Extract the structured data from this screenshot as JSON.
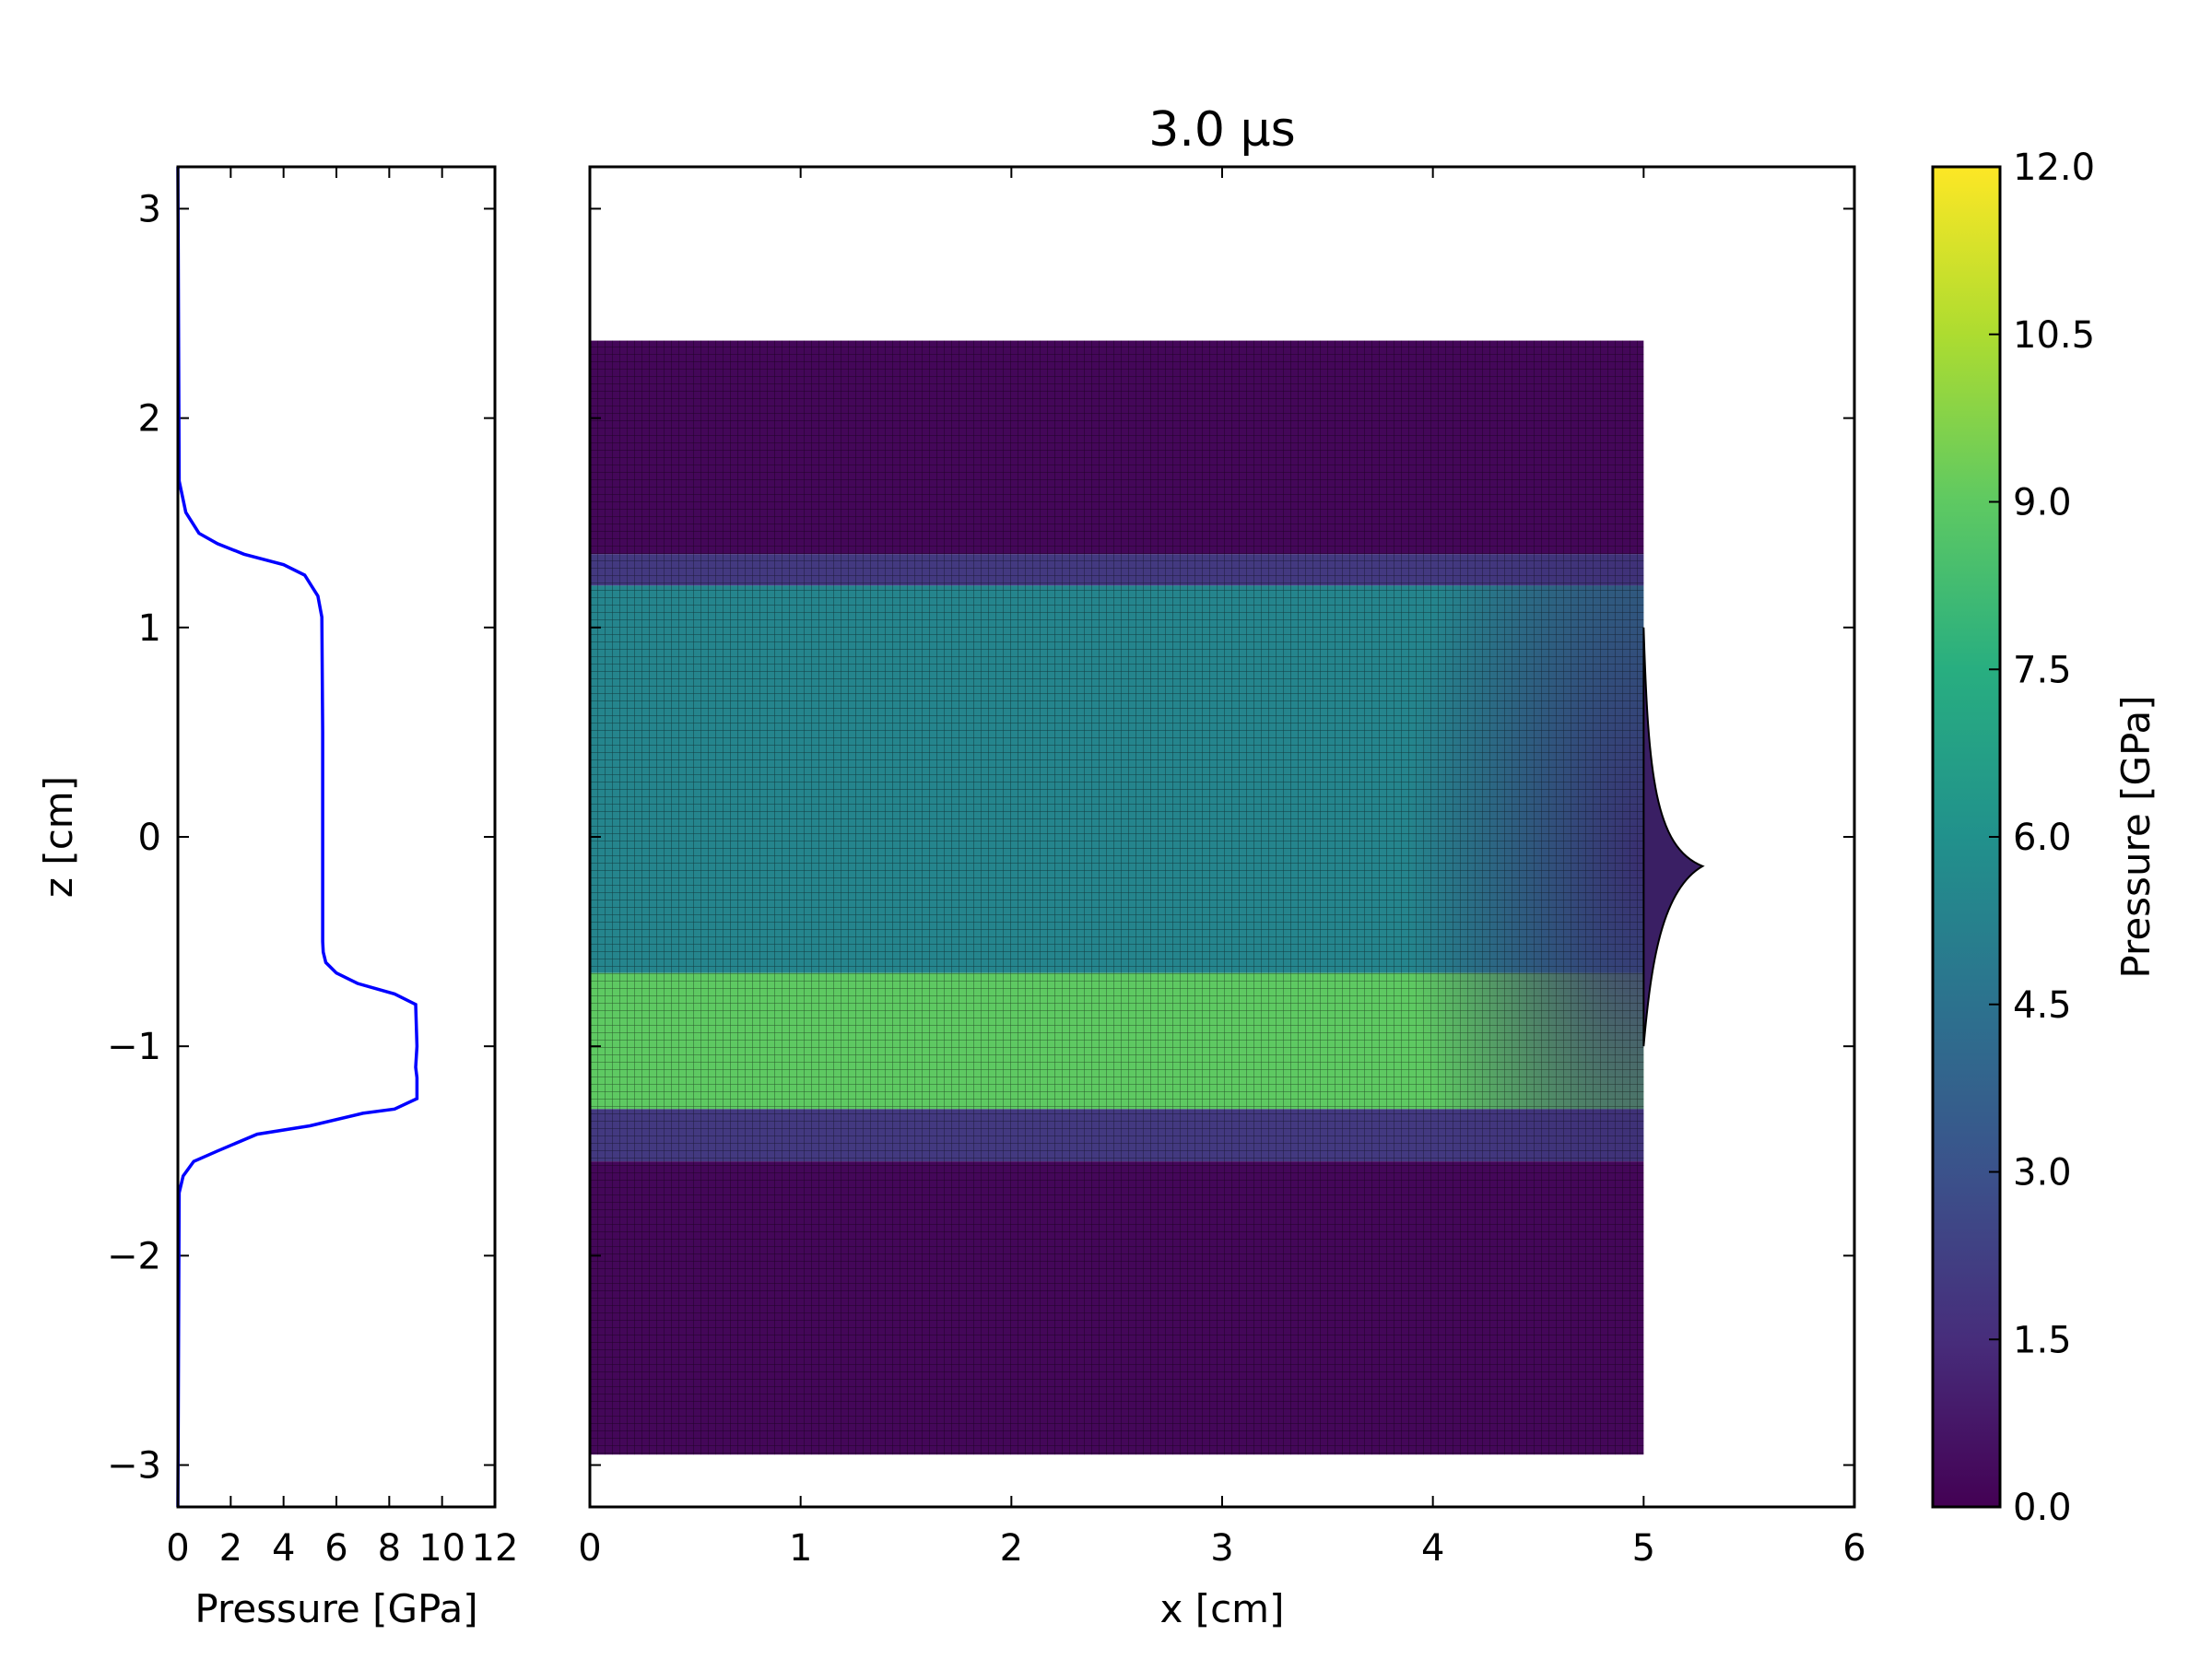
{
  "chart_data": [
    {
      "type": "line",
      "panel": "pressure-profile",
      "xlabel": "Pressure [GPa]",
      "ylabel": "z [cm]",
      "xlim": [
        0,
        12
      ],
      "ylim": [
        -3.2,
        3.2
      ],
      "xticks": [
        "0",
        "2",
        "4",
        "6",
        "8",
        "10",
        "12"
      ],
      "yticks": [
        "3",
        "2",
        "1",
        "0",
        "−1",
        "−2",
        "−3"
      ],
      "line_color": "#0000ff",
      "series": [
        {
          "x": [
            0,
            0.05,
            0.3,
            0.8,
            1.5,
            2.5,
            4.0,
            4.8,
            5.3,
            5.45,
            5.48,
            5.48,
            5.5,
            5.6,
            6.0,
            6.8,
            8.2,
            9.0,
            9.05,
            9.0,
            9.05,
            9.05,
            8.2,
            7.0,
            5.0,
            3.0,
            1.5,
            0.6,
            0.2,
            0.05,
            0
          ],
          "y": [
            3.2,
            1.7,
            1.55,
            1.45,
            1.4,
            1.35,
            1.3,
            1.25,
            1.15,
            1.05,
            0.5,
            -0.5,
            -0.55,
            -0.6,
            -0.65,
            -0.7,
            -0.75,
            -0.8,
            -1.0,
            -1.1,
            -1.15,
            -1.25,
            -1.3,
            -1.32,
            -1.38,
            -1.42,
            -1.5,
            -1.55,
            -1.62,
            -1.7,
            -3.2
          ]
        }
      ]
    },
    {
      "type": "heatmap",
      "panel": "pressure-field",
      "title": "3.0 μs",
      "xlabel": "x [cm]",
      "ylabel": "",
      "xlim": [
        0,
        6
      ],
      "ylim": [
        -3.2,
        3.2
      ],
      "xticks": [
        "0",
        "1",
        "2",
        "3",
        "4",
        "5",
        "6"
      ],
      "domain": {
        "x": [
          0,
          5.0
        ],
        "z": [
          -2.95,
          2.37
        ]
      },
      "bands": [
        {
          "z": [
            1.35,
            2.37
          ],
          "value": 0.2
        },
        {
          "z": [
            1.2,
            1.35
          ],
          "value": 2.0
        },
        {
          "z": [
            -0.65,
            1.2
          ],
          "value": 5.4
        },
        {
          "z": [
            -1.3,
            -0.65
          ],
          "value": 9.0
        },
        {
          "z": [
            -1.55,
            -1.3
          ],
          "value": 2.0
        },
        {
          "z": [
            -2.95,
            -1.55
          ],
          "value": 0.2
        }
      ],
      "colormap": "viridis",
      "grid": true
    },
    {
      "type": "colorbar",
      "label": "Pressure [GPa]",
      "range": [
        0,
        12
      ],
      "ticks": [
        "0.0",
        "1.5",
        "3.0",
        "4.5",
        "6.0",
        "7.5",
        "9.0",
        "10.5",
        "12.0"
      ]
    }
  ]
}
